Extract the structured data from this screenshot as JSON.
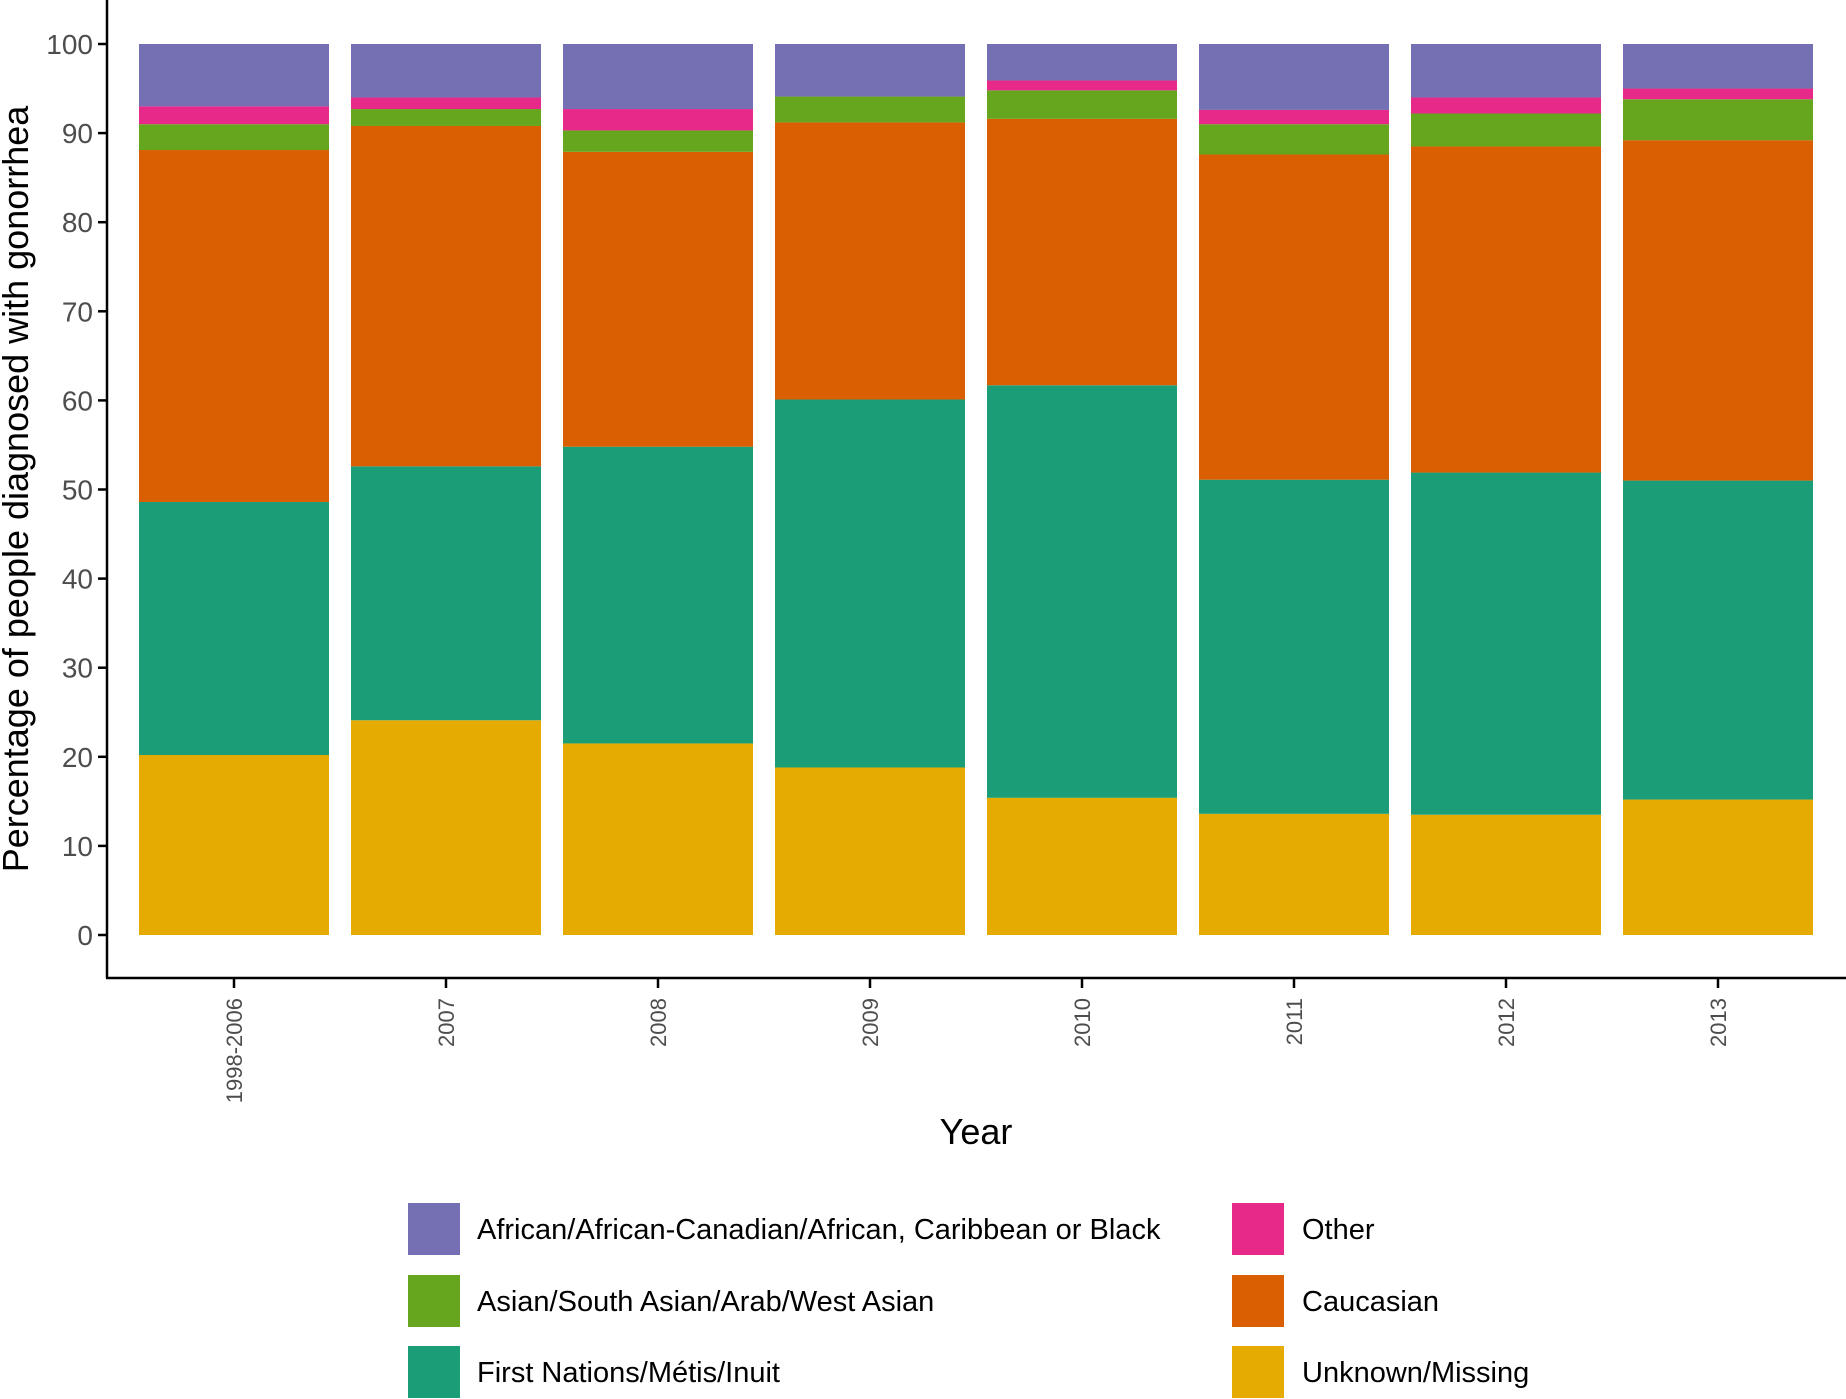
{
  "chart_data": {
    "type": "bar",
    "stacked": true,
    "title": "",
    "xlabel": "Year",
    "ylabel": "Percentage of people diagnosed with gonorrhea",
    "ylim": [
      0,
      100
    ],
    "yticks": [
      0,
      10,
      20,
      30,
      40,
      50,
      60,
      70,
      80,
      90,
      100
    ],
    "grid": false,
    "legend_position": "bottom",
    "categories": [
      "1998-2006",
      "2007",
      "2008",
      "2009",
      "2010",
      "2011",
      "2012",
      "2013"
    ],
    "series": [
      {
        "name": "Unknown/Missing",
        "color": "#e6ab02",
        "values": [
          20.2,
          24.1,
          21.5,
          18.8,
          15.4,
          13.6,
          13.5,
          15.2
        ]
      },
      {
        "name": "First Nations/Métis/Inuit",
        "color": "#1b9e77",
        "values": [
          28.4,
          28.5,
          33.3,
          41.3,
          46.3,
          37.5,
          38.4,
          35.8
        ]
      },
      {
        "name": "Caucasian",
        "color": "#d95f02",
        "values": [
          39.5,
          38.2,
          33.1,
          31.1,
          29.9,
          36.5,
          36.6,
          38.2
        ]
      },
      {
        "name": "Asian/South Asian/Arab/West Asian",
        "color": "#66a61e",
        "values": [
          2.9,
          1.9,
          2.4,
          2.9,
          3.2,
          3.4,
          3.7,
          4.6
        ]
      },
      {
        "name": "Other",
        "color": "#e7298a",
        "values": [
          2.0,
          1.3,
          2.4,
          0.0,
          1.1,
          1.6,
          1.8,
          1.2
        ]
      },
      {
        "name": "African/African-Canadian/African, Caribbean or Black",
        "color": "#7570b3",
        "values": [
          7.0,
          6.0,
          7.3,
          5.9,
          4.1,
          7.4,
          6.0,
          5.0
        ]
      }
    ],
    "legend": {
      "left": [
        "African/African-Canadian/African, Caribbean or Black",
        "Asian/South Asian/Arab/West Asian",
        "First Nations/Métis/Inuit"
      ],
      "right": [
        "Other",
        "Caucasian",
        "Unknown/Missing"
      ]
    }
  }
}
